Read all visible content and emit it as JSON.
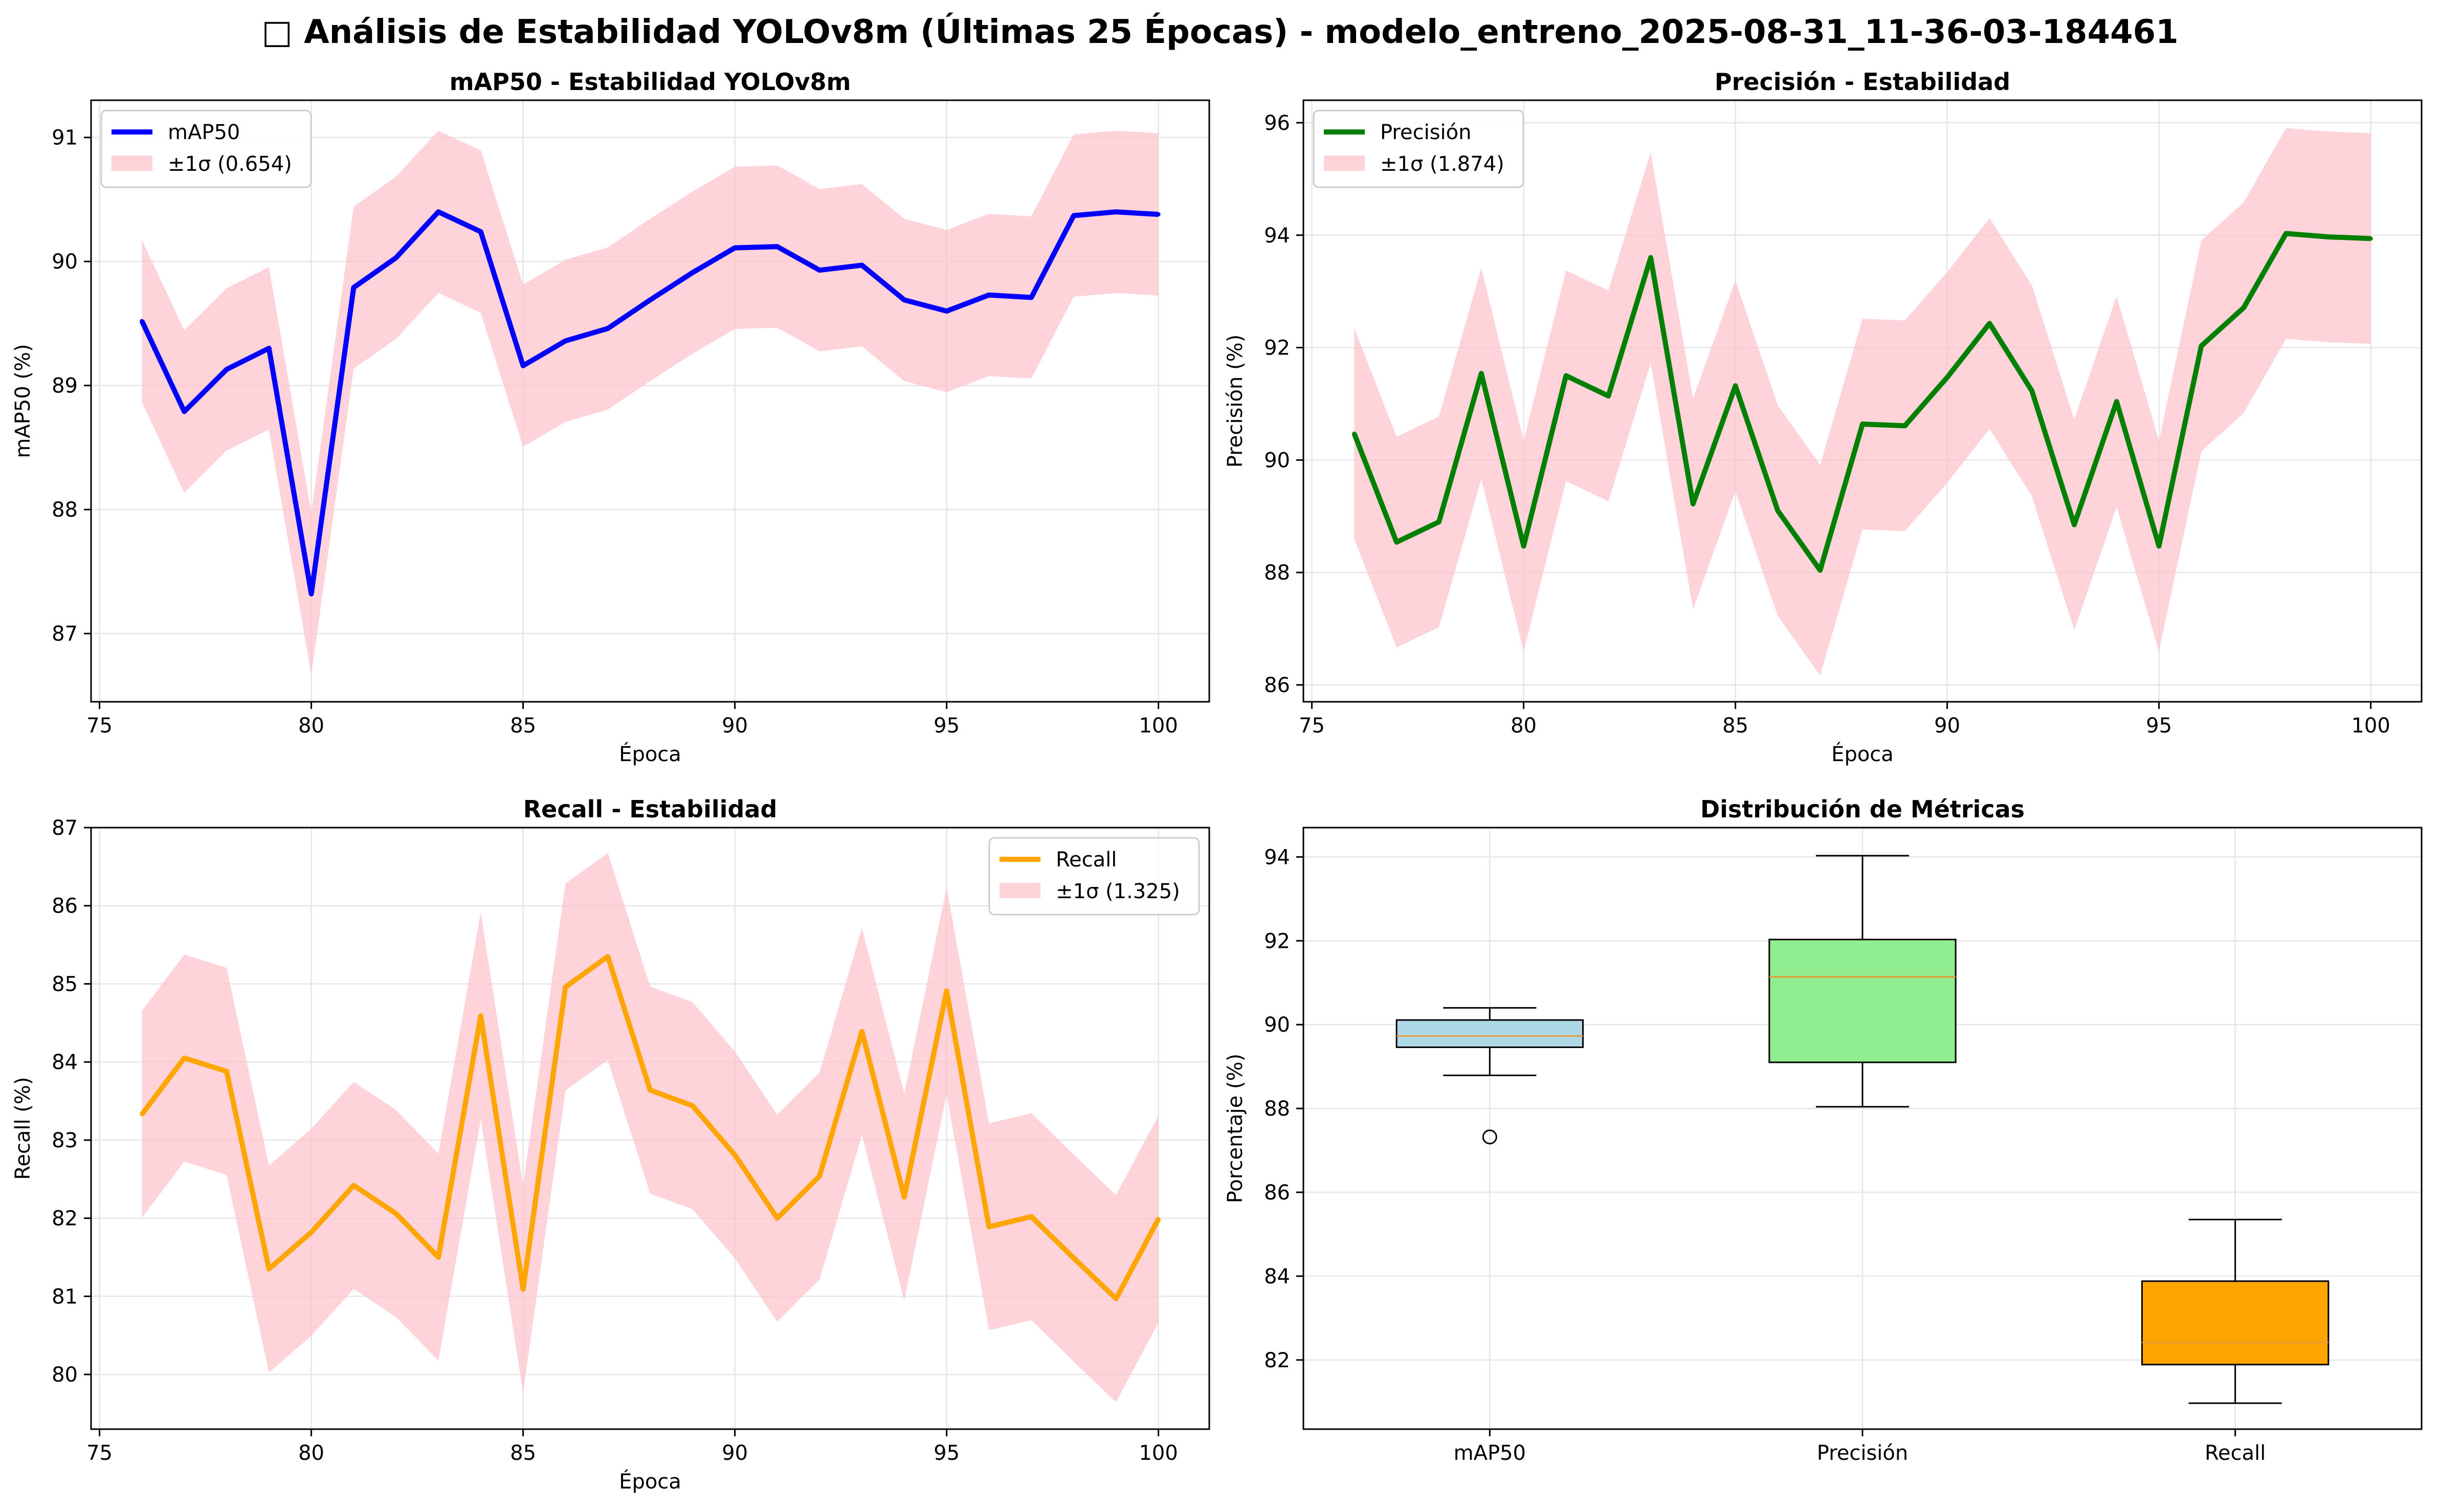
{
  "figure": {
    "title_icon": "□",
    "title": "Análisis de Estabilidad YOLOv8m (Últimas 25 Épocas) - modelo_entreno_2025-08-31_11-36-03-184461"
  },
  "chart_data": [
    {
      "type": "line",
      "title": "mAP50 - Estabilidad YOLOv8m",
      "xlabel": "Época",
      "ylabel": "mAP50 (%)",
      "xlim": [
        74.8,
        101.2
      ],
      "ylim": [
        86.45,
        91.3
      ],
      "xticks": [
        75,
        80,
        85,
        90,
        95,
        100
      ],
      "yticks": [
        87,
        88,
        89,
        90,
        91
      ],
      "grid": true,
      "legend_position": "upper-left",
      "color": "#0000ff",
      "band_color": "#ffc0cb",
      "series": [
        {
          "name": "mAP50",
          "x": [
            76,
            77,
            78,
            79,
            80,
            81,
            82,
            83,
            84,
            85,
            86,
            87,
            88,
            89,
            90,
            91,
            92,
            93,
            94,
            95,
            96,
            97,
            98,
            99,
            100
          ],
          "values": [
            89.52,
            88.79,
            89.13,
            89.3,
            87.32,
            89.79,
            90.03,
            90.4,
            90.24,
            89.16,
            89.36,
            89.46,
            89.69,
            89.91,
            90.11,
            90.12,
            89.93,
            89.97,
            89.69,
            89.6,
            89.73,
            89.71,
            90.37,
            90.4,
            90.38
          ]
        }
      ],
      "band": {
        "name": "±1σ (0.654)",
        "sigma": 0.654
      }
    },
    {
      "type": "line",
      "title": "Precisión - Estabilidad",
      "xlabel": "Época",
      "ylabel": "Precisión (%)",
      "xlim": [
        74.8,
        101.2
      ],
      "ylim": [
        85.7,
        96.4
      ],
      "xticks": [
        75,
        80,
        85,
        90,
        95,
        100
      ],
      "yticks": [
        86,
        88,
        90,
        92,
        94,
        96
      ],
      "grid": true,
      "legend_position": "upper-left",
      "color": "#008000",
      "band_color": "#ffc0cb",
      "series": [
        {
          "name": "Precisión",
          "x": [
            76,
            77,
            78,
            79,
            80,
            81,
            82,
            83,
            84,
            85,
            86,
            87,
            88,
            89,
            90,
            91,
            92,
            93,
            94,
            95,
            96,
            97,
            98,
            99,
            100
          ],
          "values": [
            90.47,
            88.54,
            88.9,
            91.54,
            88.47,
            91.5,
            91.14,
            93.6,
            89.22,
            91.32,
            89.1,
            88.04,
            90.64,
            90.61,
            91.47,
            92.43,
            91.23,
            88.85,
            91.04,
            88.47,
            92.03,
            92.71,
            94.03,
            93.97,
            93.94
          ]
        }
      ],
      "band": {
        "name": "±1σ (1.874)",
        "sigma": 1.874
      }
    },
    {
      "type": "line",
      "title": "Recall - Estabilidad",
      "xlabel": "Época",
      "ylabel": "Recall (%)",
      "xlim": [
        74.8,
        101.2
      ],
      "ylim": [
        79.3,
        87.0
      ],
      "xticks": [
        75,
        80,
        85,
        90,
        95,
        100
      ],
      "yticks": [
        80,
        81,
        82,
        83,
        84,
        85,
        86,
        87
      ],
      "grid": true,
      "legend_position": "upper-right",
      "color": "#ffa500",
      "band_color": "#ffc0cb",
      "series": [
        {
          "name": "Recall",
          "x": [
            76,
            77,
            78,
            79,
            80,
            81,
            82,
            83,
            84,
            85,
            86,
            87,
            88,
            89,
            90,
            91,
            92,
            93,
            94,
            95,
            96,
            97,
            98,
            99,
            100
          ],
          "values": [
            83.33,
            84.05,
            83.88,
            81.35,
            81.82,
            82.42,
            82.06,
            81.5,
            84.59,
            81.09,
            84.96,
            85.35,
            83.64,
            83.44,
            82.81,
            82.0,
            82.54,
            84.39,
            82.27,
            84.91,
            81.89,
            82.02,
            81.49,
            80.97,
            81.99
          ]
        }
      ],
      "band": {
        "name": "±1σ (1.325)",
        "sigma": 1.325
      }
    },
    {
      "type": "box",
      "title": "Distribución de Métricas",
      "ylabel": "Porcentaje (%)",
      "ylim": [
        80.35,
        94.7
      ],
      "yticks": [
        82,
        84,
        86,
        88,
        90,
        92,
        94
      ],
      "grid": true,
      "median_color": "#e69a3c",
      "boxes": [
        {
          "label": "mAP50",
          "color": "#add8e6",
          "whisker_low": 88.79,
          "q1": 89.46,
          "median": 89.73,
          "q3": 90.11,
          "whisker_high": 90.4,
          "outliers": [
            87.32
          ]
        },
        {
          "label": "Precisión",
          "color": "#90ee90",
          "whisker_low": 88.04,
          "q1": 89.1,
          "median": 91.14,
          "q3": 92.03,
          "whisker_high": 94.03,
          "outliers": []
        },
        {
          "label": "Recall",
          "color": "#ffa500",
          "whisker_low": 80.97,
          "q1": 81.89,
          "median": 82.42,
          "q3": 83.88,
          "whisker_high": 85.35,
          "outliers": []
        }
      ]
    }
  ]
}
